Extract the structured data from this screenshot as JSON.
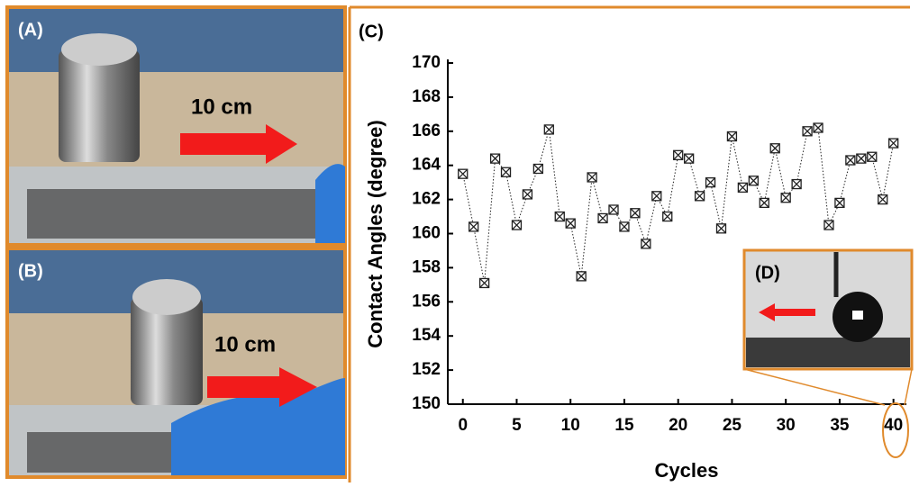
{
  "panels": {
    "a": {
      "label": "(A)",
      "distance": "10 cm"
    },
    "b": {
      "label": "(B)",
      "distance": "10 cm"
    },
    "d": {
      "label": "(D)"
    }
  },
  "chart_data": {
    "type": "line",
    "panel_label": "(C)",
    "x_label": "Cycles",
    "y_label": "Contact Angles (degree)",
    "x": [
      0,
      1,
      2,
      3,
      4,
      5,
      6,
      7,
      8,
      9,
      10,
      11,
      12,
      13,
      14,
      15,
      16,
      17,
      18,
      19,
      20,
      21,
      22,
      23,
      24,
      25,
      26,
      27,
      28,
      29,
      30,
      31,
      32,
      33,
      34,
      35,
      36,
      37,
      38,
      39,
      40
    ],
    "values": [
      163.5,
      160.4,
      157.1,
      164.4,
      163.6,
      160.5,
      162.3,
      163.8,
      166.1,
      161.0,
      160.6,
      157.5,
      163.3,
      160.9,
      161.4,
      160.4,
      161.2,
      159.4,
      162.2,
      161.0,
      164.6,
      164.4,
      162.2,
      163.0,
      160.3,
      165.7,
      162.7,
      163.1,
      161.8,
      165.0,
      162.1,
      162.9,
      166.0,
      166.2,
      160.5,
      161.8,
      164.3,
      164.4,
      164.5,
      162.0,
      165.3
    ],
    "color": "#222222",
    "xlim": [
      -1.4,
      41.2
    ],
    "ylim": [
      150,
      170
    ],
    "xticks": [
      0,
      5,
      10,
      15,
      20,
      25,
      30,
      35,
      40
    ],
    "yticks": [
      150,
      152,
      154,
      156,
      158,
      160,
      162,
      164,
      166,
      168,
      170
    ]
  }
}
